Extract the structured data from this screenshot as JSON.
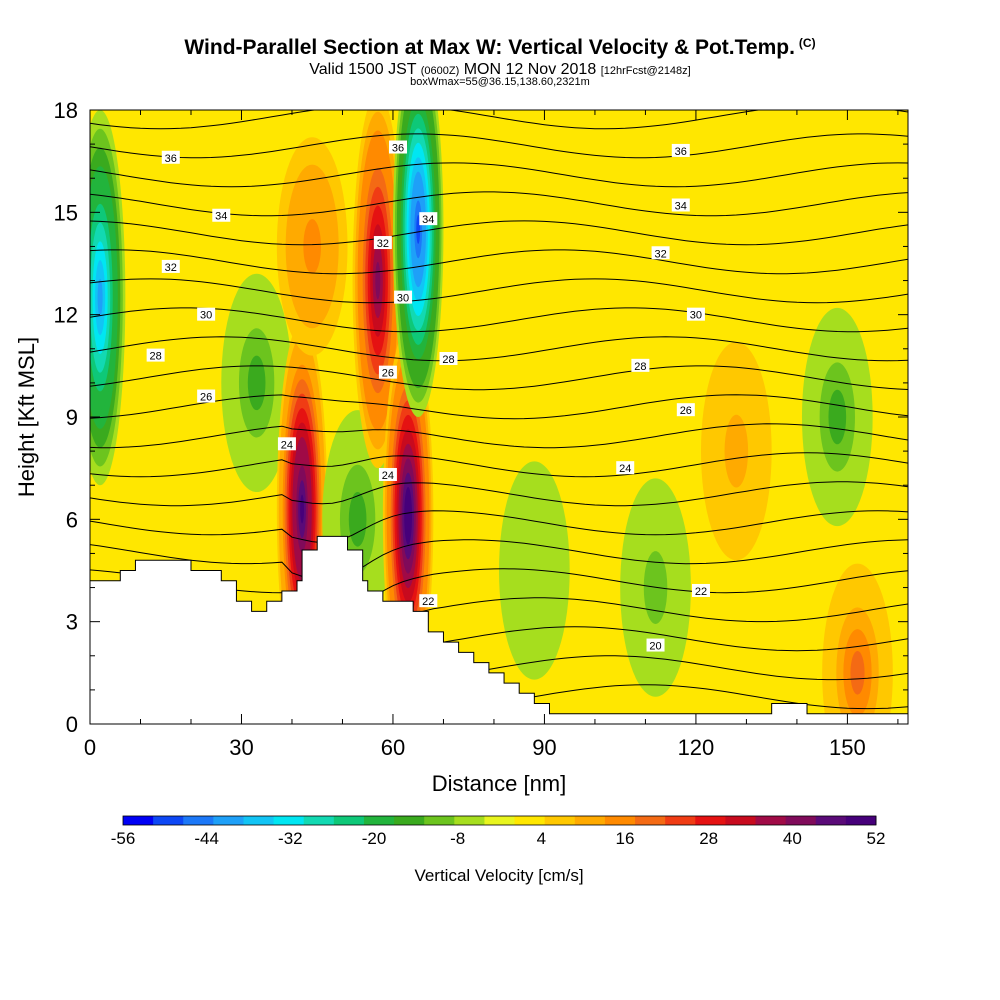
{
  "header": {
    "title": "Wind-Parallel Section at Max W: Vertical Velocity & Pot.Temp.",
    "copyright": "(C)",
    "valid_main": "Valid 1500 JST",
    "valid_utc": "(0600Z)",
    "valid_date": "MON 12 Nov 2018",
    "forecast": "[12hrFcst@2148z]",
    "box_info": "boxWmax=55@36.15,138.60,2321m"
  },
  "chart_data": {
    "type": "heatmap",
    "xlabel": "Distance [nm]",
    "ylabel": "Height [Kft MSL]",
    "xlim": [
      0,
      162
    ],
    "ylim": [
      0,
      18
    ],
    "x_ticks": [
      0,
      30,
      60,
      90,
      120,
      150
    ],
    "y_ticks": [
      0,
      3,
      6,
      9,
      12,
      15,
      18
    ],
    "colorbar": {
      "label": "Vertical Velocity [cm/s]",
      "min": -56,
      "max": 52,
      "step": 4,
      "tick_labels": [
        -56,
        -44,
        -32,
        -20,
        -8,
        4,
        16,
        28,
        40,
        52
      ],
      "colors": [
        "#0000f5",
        "#0d47f5",
        "#1c78f8",
        "#1ea0f8",
        "#12c4f5",
        "#00e6f2",
        "#12d9b2",
        "#0ec878",
        "#22b43c",
        "#3aaa1e",
        "#6cc41e",
        "#a6de1e",
        "#e8f51e",
        "#ffe700",
        "#ffc800",
        "#ffaa00",
        "#ff8a00",
        "#f46a14",
        "#f03c14",
        "#e51212",
        "#c80a1e",
        "#a00a46",
        "#800a5a",
        "#5a0a78",
        "#46007a"
      ]
    },
    "velocity_features": [
      {
        "center_x": 2,
        "center_y": 12.5,
        "value": -40
      },
      {
        "center_x": 33,
        "center_y": 10,
        "value": -14
      },
      {
        "center_x": 42,
        "center_y": 6.3,
        "value": 50
      },
      {
        "center_x": 44,
        "center_y": 14,
        "value": 16
      },
      {
        "center_x": 53,
        "center_y": 6,
        "value": -14
      },
      {
        "center_x": 57,
        "center_y": 13,
        "value": 40
      },
      {
        "center_x": 63,
        "center_y": 6.1,
        "value": 52
      },
      {
        "center_x": 65,
        "center_y": 14.5,
        "value": -50
      },
      {
        "center_x": 88,
        "center_y": 4.5,
        "value": -8
      },
      {
        "center_x": 112,
        "center_y": 4,
        "value": -10
      },
      {
        "center_x": 128,
        "center_y": 8,
        "value": 10
      },
      {
        "center_x": 148,
        "center_y": 9,
        "value": -14
      },
      {
        "center_x": 152,
        "center_y": 1.5,
        "value": 18
      }
    ],
    "potential_temperature_contours": [
      {
        "label": "20",
        "label_at": [
          112,
          2.3
        ]
      },
      {
        "label": "22",
        "label_at": [
          121,
          3.9
        ]
      },
      {
        "label": "22",
        "label_at": [
          67,
          3.6
        ]
      },
      {
        "label": "24",
        "label_at": [
          106,
          7.5
        ]
      },
      {
        "label": "24",
        "label_at": [
          39,
          8.2
        ]
      },
      {
        "label": "24",
        "label_at": [
          59,
          7.3
        ]
      },
      {
        "label": "26",
        "label_at": [
          23,
          9.6
        ]
      },
      {
        "label": "26",
        "label_at": [
          59,
          10.3
        ]
      },
      {
        "label": "26",
        "label_at": [
          118,
          9.2
        ]
      },
      {
        "label": "28",
        "label_at": [
          13,
          10.8
        ]
      },
      {
        "label": "28",
        "label_at": [
          71,
          10.7
        ]
      },
      {
        "label": "28",
        "label_at": [
          109,
          10.5
        ]
      },
      {
        "label": "30",
        "label_at": [
          23,
          12
        ]
      },
      {
        "label": "30",
        "label_at": [
          62,
          12.5
        ]
      },
      {
        "label": "30",
        "label_at": [
          120,
          12
        ]
      },
      {
        "label": "32",
        "label_at": [
          16,
          13.4
        ]
      },
      {
        "label": "32",
        "label_at": [
          58,
          14.1
        ]
      },
      {
        "label": "32",
        "label_at": [
          113,
          13.8
        ]
      },
      {
        "label": "34",
        "label_at": [
          26,
          14.9
        ]
      },
      {
        "label": "34",
        "label_at": [
          67,
          14.8
        ]
      },
      {
        "label": "34",
        "label_at": [
          117,
          15.2
        ]
      },
      {
        "label": "36",
        "label_at": [
          16,
          16.6
        ]
      },
      {
        "label": "36",
        "label_at": [
          61,
          16.9
        ]
      },
      {
        "label": "36",
        "label_at": [
          117,
          16.8
        ]
      }
    ],
    "terrain_profile": [
      [
        0,
        4.2
      ],
      [
        6,
        4.2
      ],
      [
        6,
        4.5
      ],
      [
        9,
        4.5
      ],
      [
        9,
        4.8
      ],
      [
        20,
        4.8
      ],
      [
        20,
        4.5
      ],
      [
        26,
        4.5
      ],
      [
        26,
        4.2
      ],
      [
        29,
        4.2
      ],
      [
        29,
        3.6
      ],
      [
        32,
        3.6
      ],
      [
        32,
        3.3
      ],
      [
        35,
        3.3
      ],
      [
        35,
        3.6
      ],
      [
        38,
        3.6
      ],
      [
        38,
        3.9
      ],
      [
        41,
        3.9
      ],
      [
        41,
        4.2
      ],
      [
        42,
        4.2
      ],
      [
        42,
        5.1
      ],
      [
        45,
        5.1
      ],
      [
        45,
        5.5
      ],
      [
        51,
        5.5
      ],
      [
        51,
        5.1
      ],
      [
        54,
        5.1
      ],
      [
        54,
        4.2
      ],
      [
        55,
        4.2
      ],
      [
        55,
        3.9
      ],
      [
        58,
        3.9
      ],
      [
        58,
        3.6
      ],
      [
        64,
        3.6
      ],
      [
        64,
        3.3
      ],
      [
        67,
        3.3
      ],
      [
        67,
        2.7
      ],
      [
        70,
        2.7
      ],
      [
        70,
        2.4
      ],
      [
        73,
        2.4
      ],
      [
        73,
        2.1
      ],
      [
        76,
        2.1
      ],
      [
        76,
        1.8
      ],
      [
        79,
        1.8
      ],
      [
        79,
        1.5
      ],
      [
        82,
        1.5
      ],
      [
        82,
        1.2
      ],
      [
        85,
        1.2
      ],
      [
        85,
        0.9
      ],
      [
        88,
        0.9
      ],
      [
        88,
        0.6
      ],
      [
        91,
        0.6
      ],
      [
        91,
        0.3
      ],
      [
        135,
        0.3
      ],
      [
        135,
        0.6
      ],
      [
        142,
        0.6
      ],
      [
        142,
        0.3
      ],
      [
        162,
        0.3
      ]
    ]
  }
}
